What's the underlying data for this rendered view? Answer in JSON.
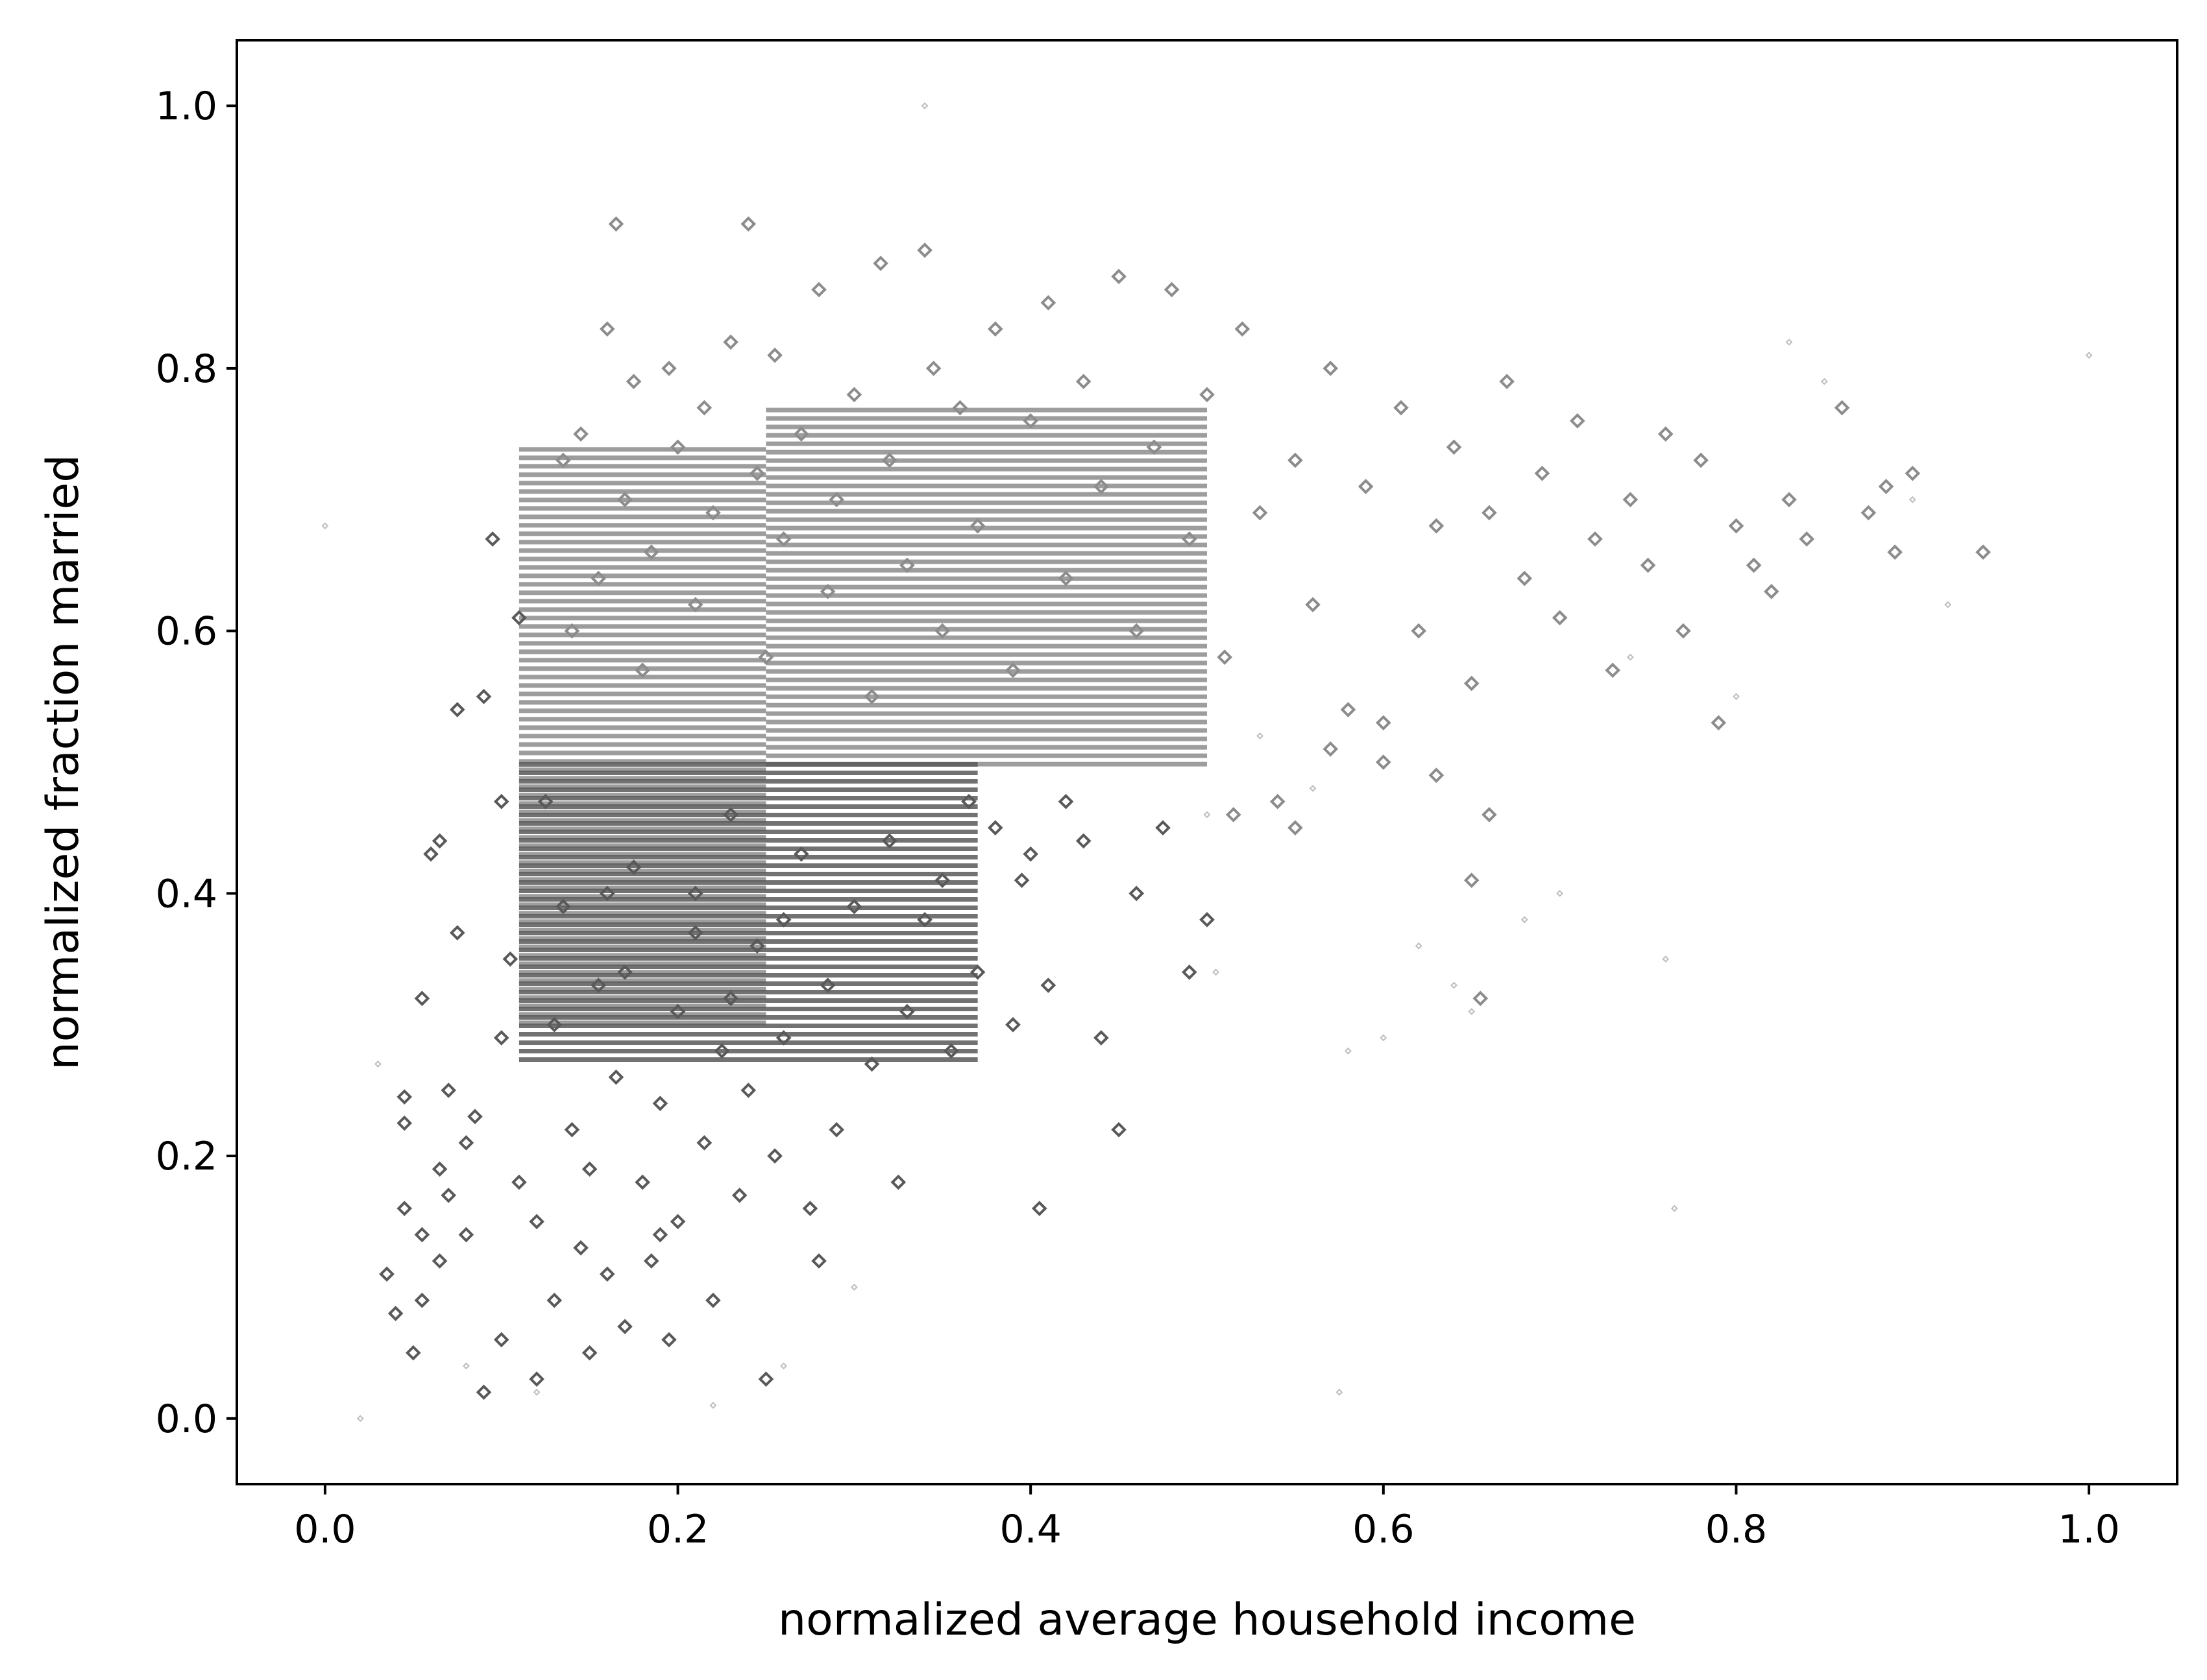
{
  "chart_data": {
    "type": "scatter",
    "title": "",
    "xlabel": "normalized average household income",
    "ylabel": "normalized fraction married",
    "xlim": [
      -0.05,
      1.05
    ],
    "ylim": [
      -0.05,
      1.05
    ],
    "xticks": [
      "0.0",
      "0.2",
      "0.4",
      "0.6",
      "0.8",
      "1.0"
    ],
    "yticks": [
      "0.0",
      "0.2",
      "0.4",
      "0.6",
      "0.8",
      "1.0"
    ],
    "xtick_values": [
      0.0,
      0.2,
      0.4,
      0.6,
      0.8,
      1.0
    ],
    "ytick_values": [
      0.0,
      0.2,
      0.4,
      0.6,
      0.8,
      1.0
    ],
    "grid": false,
    "legend": "none",
    "colors": {
      "dark_markers": "#595959",
      "light_markers": "#8c8c8c",
      "faint_markers": "#bdbdbd"
    },
    "series": [
      {
        "values": [
          [
            0.035,
            0.11
          ],
          [
            0.04,
            0.08
          ],
          [
            0.045,
            0.245
          ],
          [
            0.045,
            0.225
          ],
          [
            0.045,
            0.16
          ],
          [
            0.05,
            0.05
          ],
          [
            0.055,
            0.14
          ],
          [
            0.055,
            0.09
          ],
          [
            0.055,
            0.32
          ],
          [
            0.06,
            0.43
          ],
          [
            0.065,
            0.44
          ],
          [
            0.065,
            0.19
          ],
          [
            0.065,
            0.12
          ],
          [
            0.07,
            0.25
          ],
          [
            0.07,
            0.17
          ],
          [
            0.075,
            0.37
          ],
          [
            0.08,
            0.14
          ],
          [
            0.08,
            0.21
          ],
          [
            0.085,
            0.23
          ],
          [
            0.09,
            0.02
          ],
          [
            0.09,
            0.55
          ],
          [
            0.095,
            0.67
          ],
          [
            0.1,
            0.06
          ],
          [
            0.1,
            0.29
          ],
          [
            0.105,
            0.35
          ],
          [
            0.11,
            0.18
          ],
          [
            0.12,
            0.15
          ],
          [
            0.12,
            0.03
          ],
          [
            0.125,
            0.47
          ],
          [
            0.13,
            0.09
          ],
          [
            0.135,
            0.39
          ],
          [
            0.14,
            0.22
          ],
          [
            0.145,
            0.13
          ],
          [
            0.15,
            0.05
          ],
          [
            0.155,
            0.33
          ],
          [
            0.16,
            0.11
          ],
          [
            0.165,
            0.26
          ],
          [
            0.17,
            0.07
          ],
          [
            0.175,
            0.42
          ],
          [
            0.18,
            0.18
          ],
          [
            0.185,
            0.12
          ],
          [
            0.19,
            0.24
          ],
          [
            0.195,
            0.06
          ],
          [
            0.2,
            0.31
          ],
          [
            0.2,
            0.15
          ],
          [
            0.21,
            0.37
          ],
          [
            0.215,
            0.21
          ],
          [
            0.22,
            0.09
          ],
          [
            0.225,
            0.28
          ],
          [
            0.23,
            0.46
          ],
          [
            0.235,
            0.17
          ],
          [
            0.24,
            0.25
          ],
          [
            0.245,
            0.36
          ],
          [
            0.25,
            0.03
          ],
          [
            0.255,
            0.2
          ],
          [
            0.26,
            0.29
          ],
          [
            0.27,
            0.43
          ],
          [
            0.275,
            0.16
          ],
          [
            0.28,
            0.12
          ],
          [
            0.285,
            0.33
          ],
          [
            0.29,
            0.22
          ],
          [
            0.3,
            0.39
          ],
          [
            0.31,
            0.27
          ],
          [
            0.32,
            0.44
          ],
          [
            0.325,
            0.18
          ],
          [
            0.33,
            0.31
          ],
          [
            0.34,
            0.38
          ],
          [
            0.35,
            0.41
          ],
          [
            0.355,
            0.28
          ],
          [
            0.365,
            0.47
          ],
          [
            0.37,
            0.34
          ],
          [
            0.38,
            0.45
          ],
          [
            0.39,
            0.3
          ],
          [
            0.395,
            0.41
          ],
          [
            0.4,
            0.43
          ],
          [
            0.405,
            0.16
          ],
          [
            0.41,
            0.33
          ],
          [
            0.42,
            0.47
          ],
          [
            0.43,
            0.44
          ],
          [
            0.44,
            0.29
          ],
          [
            0.45,
            0.22
          ],
          [
            0.46,
            0.4
          ],
          [
            0.475,
            0.45
          ],
          [
            0.49,
            0.34
          ],
          [
            0.5,
            0.38
          ],
          [
            0.075,
            0.54
          ],
          [
            0.1,
            0.47
          ],
          [
            0.11,
            0.61
          ],
          [
            0.13,
            0.3
          ],
          [
            0.15,
            0.19
          ],
          [
            0.16,
            0.4
          ],
          [
            0.17,
            0.34
          ],
          [
            0.19,
            0.14
          ],
          [
            0.21,
            0.4
          ],
          [
            0.23,
            0.32
          ],
          [
            0.26,
            0.38
          ]
        ]
      },
      {
        "values": [
          [
            0.135,
            0.73
          ],
          [
            0.14,
            0.6
          ],
          [
            0.145,
            0.75
          ],
          [
            0.155,
            0.64
          ],
          [
            0.16,
            0.83
          ],
          [
            0.165,
            0.91
          ],
          [
            0.17,
            0.7
          ],
          [
            0.175,
            0.79
          ],
          [
            0.18,
            0.57
          ],
          [
            0.185,
            0.66
          ],
          [
            0.195,
            0.8
          ],
          [
            0.2,
            0.74
          ],
          [
            0.21,
            0.62
          ],
          [
            0.215,
            0.77
          ],
          [
            0.22,
            0.69
          ],
          [
            0.23,
            0.82
          ],
          [
            0.24,
            0.91
          ],
          [
            0.245,
            0.72
          ],
          [
            0.25,
            0.58
          ],
          [
            0.255,
            0.81
          ],
          [
            0.26,
            0.67
          ],
          [
            0.27,
            0.75
          ],
          [
            0.28,
            0.86
          ],
          [
            0.285,
            0.63
          ],
          [
            0.29,
            0.7
          ],
          [
            0.3,
            0.78
          ],
          [
            0.31,
            0.55
          ],
          [
            0.315,
            0.88
          ],
          [
            0.32,
            0.73
          ],
          [
            0.33,
            0.65
          ],
          [
            0.34,
            0.89
          ],
          [
            0.345,
            0.8
          ],
          [
            0.35,
            0.6
          ],
          [
            0.36,
            0.77
          ],
          [
            0.37,
            0.68
          ],
          [
            0.38,
            0.83
          ],
          [
            0.39,
            0.57
          ],
          [
            0.4,
            0.76
          ],
          [
            0.41,
            0.85
          ],
          [
            0.42,
            0.64
          ],
          [
            0.43,
            0.79
          ],
          [
            0.44,
            0.71
          ],
          [
            0.45,
            0.87
          ],
          [
            0.46,
            0.6
          ],
          [
            0.47,
            0.74
          ],
          [
            0.48,
            0.86
          ],
          [
            0.49,
            0.67
          ],
          [
            0.5,
            0.78
          ],
          [
            0.51,
            0.58
          ],
          [
            0.52,
            0.83
          ],
          [
            0.53,
            0.69
          ],
          [
            0.54,
            0.47
          ],
          [
            0.55,
            0.73
          ],
          [
            0.56,
            0.62
          ],
          [
            0.57,
            0.8
          ],
          [
            0.58,
            0.54
          ],
          [
            0.59,
            0.71
          ],
          [
            0.6,
            0.5
          ],
          [
            0.61,
            0.77
          ],
          [
            0.62,
            0.6
          ],
          [
            0.63,
            0.68
          ],
          [
            0.64,
            0.74
          ],
          [
            0.65,
            0.56
          ],
          [
            0.66,
            0.69
          ],
          [
            0.67,
            0.79
          ],
          [
            0.68,
            0.64
          ],
          [
            0.69,
            0.72
          ],
          [
            0.7,
            0.61
          ],
          [
            0.71,
            0.76
          ],
          [
            0.72,
            0.67
          ],
          [
            0.73,
            0.57
          ],
          [
            0.74,
            0.7
          ],
          [
            0.75,
            0.65
          ],
          [
            0.76,
            0.75
          ],
          [
            0.77,
            0.6
          ],
          [
            0.78,
            0.73
          ],
          [
            0.79,
            0.53
          ],
          [
            0.8,
            0.68
          ],
          [
            0.81,
            0.65
          ],
          [
            0.82,
            0.63
          ],
          [
            0.83,
            0.7
          ],
          [
            0.84,
            0.67
          ],
          [
            0.86,
            0.77
          ],
          [
            0.875,
            0.69
          ],
          [
            0.885,
            0.71
          ],
          [
            0.89,
            0.66
          ],
          [
            0.9,
            0.72
          ],
          [
            0.94,
            0.66
          ],
          [
            0.515,
            0.46
          ],
          [
            0.55,
            0.45
          ],
          [
            0.57,
            0.51
          ],
          [
            0.6,
            0.53
          ],
          [
            0.63,
            0.49
          ],
          [
            0.65,
            0.41
          ],
          [
            0.655,
            0.32
          ],
          [
            0.66,
            0.46
          ]
        ]
      },
      {
        "values": [
          [
            0.0,
            0.68
          ],
          [
            0.02,
            0.0
          ],
          [
            0.03,
            0.27
          ],
          [
            0.08,
            0.04
          ],
          [
            0.12,
            0.02
          ],
          [
            0.22,
            0.01
          ],
          [
            0.26,
            0.04
          ],
          [
            0.3,
            0.1
          ],
          [
            0.34,
            1.0
          ],
          [
            0.5,
            0.46
          ],
          [
            0.505,
            0.34
          ],
          [
            0.53,
            0.52
          ],
          [
            0.56,
            0.48
          ],
          [
            0.575,
            0.02
          ],
          [
            0.58,
            0.28
          ],
          [
            0.6,
            0.29
          ],
          [
            0.62,
            0.36
          ],
          [
            0.64,
            0.33
          ],
          [
            0.65,
            0.31
          ],
          [
            0.68,
            0.38
          ],
          [
            0.7,
            0.4
          ],
          [
            0.74,
            0.58
          ],
          [
            0.76,
            0.35
          ],
          [
            0.765,
            0.16
          ],
          [
            0.8,
            0.55
          ],
          [
            0.83,
            0.82
          ],
          [
            0.85,
            0.79
          ],
          [
            0.9,
            0.7
          ],
          [
            0.92,
            0.62
          ],
          [
            1.0,
            0.81
          ]
        ]
      }
    ],
    "dense_bands": [
      {
        "x_range": [
          0.11,
          0.25
        ],
        "y_range": [
          0.3,
          0.74
        ],
        "shade": "light"
      },
      {
        "x_range": [
          0.25,
          0.5
        ],
        "y_range": [
          0.5,
          0.77
        ],
        "shade": "light"
      },
      {
        "x_range": [
          0.11,
          0.37
        ],
        "y_range": [
          0.27,
          0.5
        ],
        "shade": "dark"
      }
    ]
  }
}
